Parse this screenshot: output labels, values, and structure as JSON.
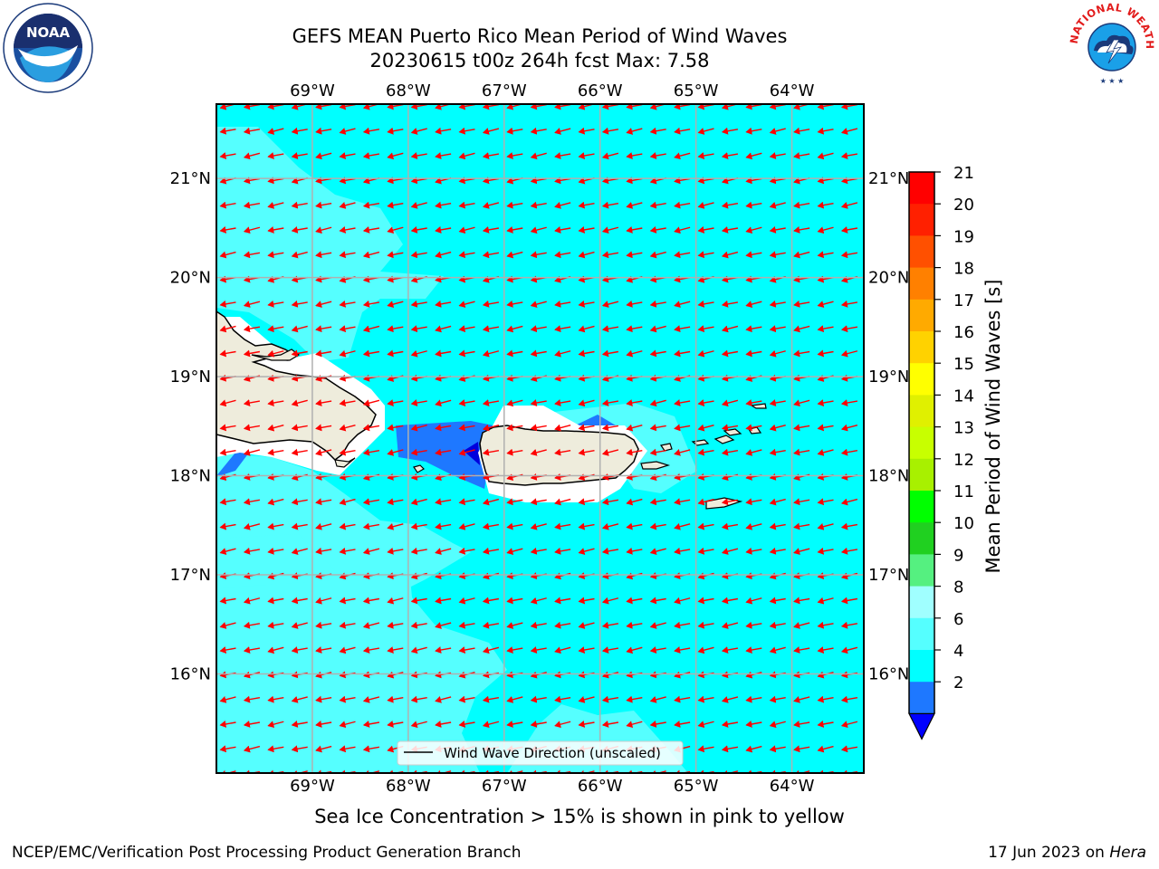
{
  "title": {
    "line1": "GEFS MEAN Puerto Rico Mean Period of Wind Waves",
    "line2": "20230615 t00z 264h fcst   Max: 7.58"
  },
  "axes": {
    "lon_labels": [
      "69°W",
      "68°W",
      "67°W",
      "66°W",
      "65°W",
      "64°W"
    ],
    "lat_labels": [
      "21°N",
      "20°N",
      "19°N",
      "18°N",
      "17°N",
      "16°N"
    ],
    "lon_values": [
      -69,
      -68,
      -67,
      -66,
      -65,
      -64
    ],
    "lat_values": [
      21,
      20,
      19,
      18,
      17,
      16
    ],
    "lon_range": [
      -70.0,
      -63.25
    ],
    "lat_range": [
      15.0,
      21.75
    ]
  },
  "colorbar": {
    "label": "Mean Period of Wind Waves [s]",
    "tick_labels": [
      "21",
      "20",
      "19",
      "18",
      "17",
      "16",
      "15",
      "14",
      "13",
      "12",
      "11",
      "10",
      "9",
      "8",
      "6",
      "4",
      "2"
    ],
    "levels": [
      2,
      4,
      6,
      8,
      9,
      10,
      11,
      12,
      13,
      14,
      15,
      16,
      17,
      18,
      19,
      20,
      21
    ],
    "colors": [
      "#0000ff",
      "#1e78ff",
      "#00ffff",
      "#55ffff",
      "#a0ffff",
      "#55f080",
      "#20d020",
      "#00ff00",
      "#a8f000",
      "#c8ff00",
      "#e0f000",
      "#ffff00",
      "#ffd200",
      "#ffaa00",
      "#ff8000",
      "#ff5000",
      "#ff2000",
      "#ff0000"
    ],
    "under_color": "#0000ff"
  },
  "legend": {
    "label": "Wind Wave Direction (unscaled)"
  },
  "map_colors": {
    "ocean": "#00ffff",
    "ocean_light": "#55ffff",
    "blue_patch": "#1e78ff",
    "deep_blue": "#0000dd",
    "land": "#eeecdc",
    "arrow": "#ff0000",
    "grid": "#b0b0b0"
  },
  "wind_direction": "toward west-southwest",
  "caption": "Sea Ice Concentration > 15% is shown in pink to yellow",
  "footer": {
    "left": "NCEP/EMC/Verification Post Processing Product Generation Branch",
    "right_date": "17 Jun 2023 on ",
    "right_host": "Hera"
  },
  "logos": {
    "noaa_text": "NOAA",
    "nws_text": "NATIONAL WEATHER SERVICE"
  }
}
